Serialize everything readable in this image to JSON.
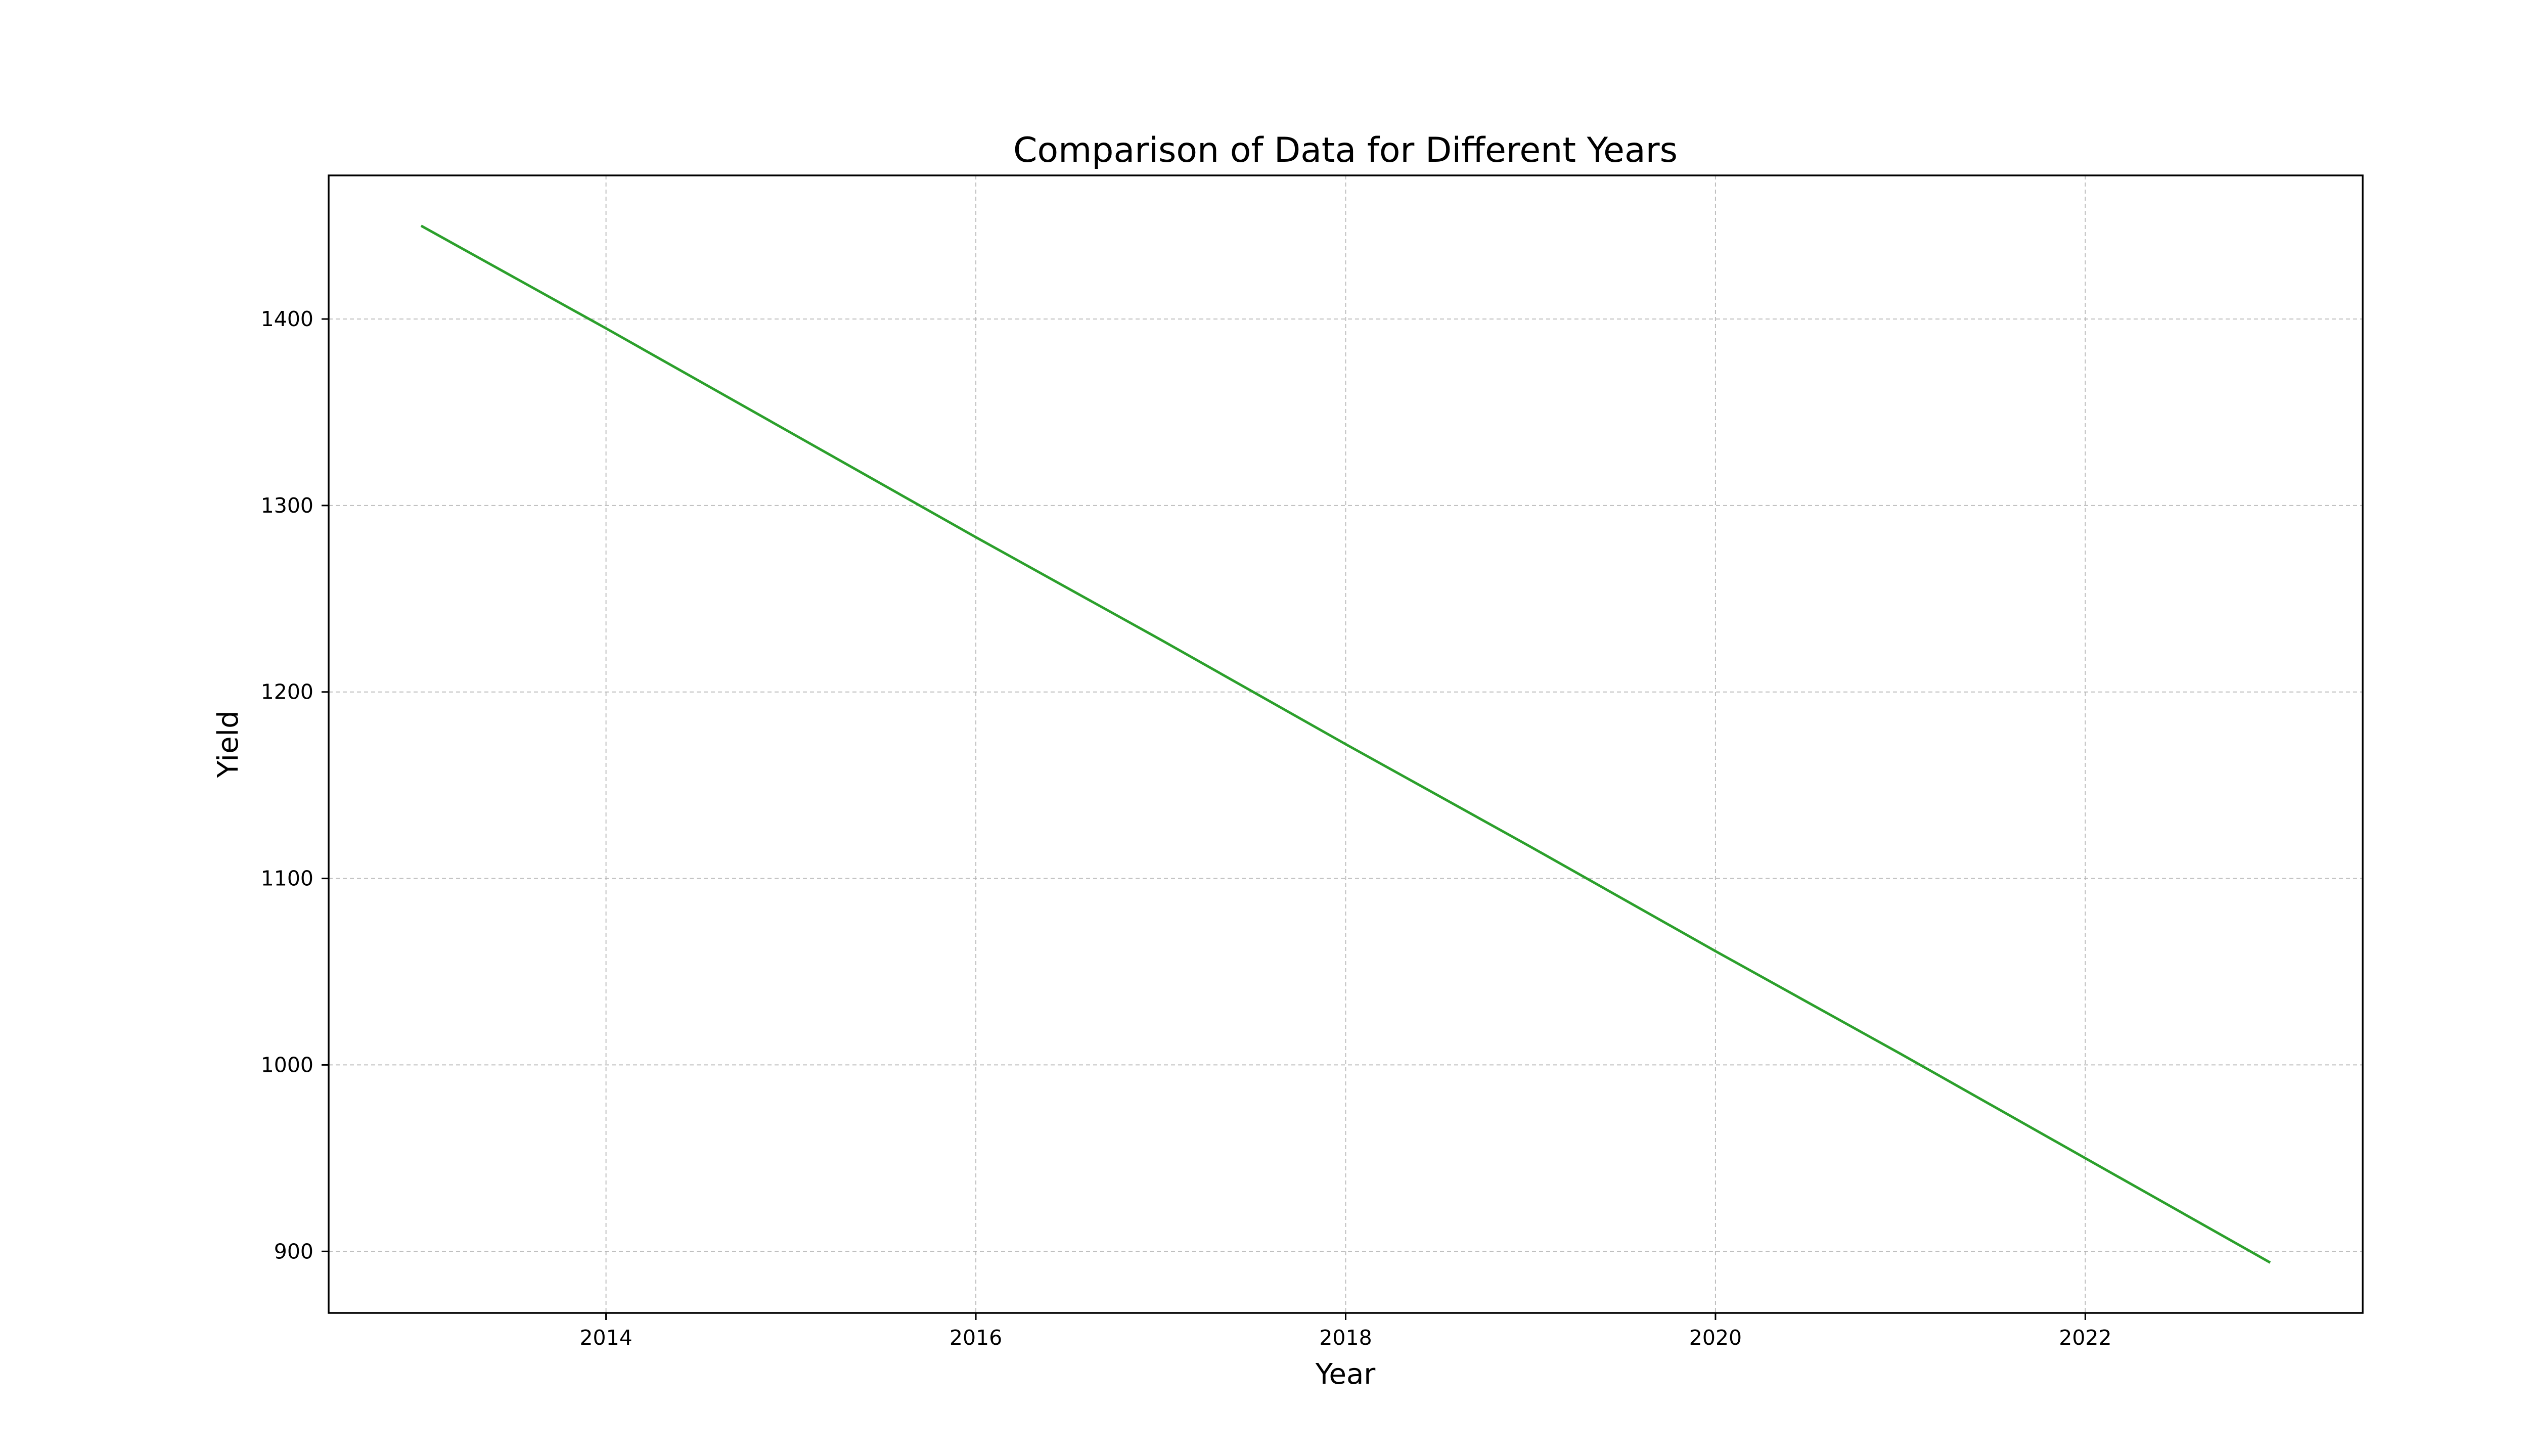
{
  "chart_data": {
    "type": "line",
    "title": "Comparison of Data for Different Years",
    "xlabel": "Year",
    "ylabel": "Yield",
    "xlim": [
      2012.5,
      2023.5
    ],
    "ylim": [
      867,
      1477
    ],
    "xticks": [
      2014,
      2016,
      2018,
      2020,
      2022
    ],
    "yticks": [
      900,
      1000,
      1100,
      1200,
      1300,
      1400
    ],
    "grid": true,
    "series": [
      {
        "color": "#2ca02c",
        "x": [
          2013,
          2014,
          2015,
          2016,
          2017,
          2018,
          2019,
          2020,
          2021,
          2022,
          2023
        ],
        "y": [
          1450,
          1395,
          1339,
          1283,
          1228,
          1172,
          1117,
          1061,
          1006,
          950,
          894
        ]
      }
    ]
  }
}
